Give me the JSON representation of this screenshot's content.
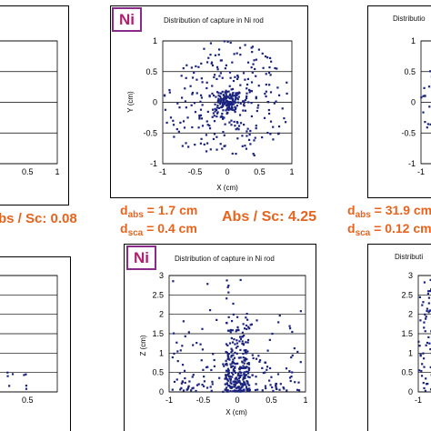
{
  "labels": {
    "ni_tag_top": "Ni",
    "ni_tag_bottom": "Ni",
    "title_ni_top": "Distribution of capture in Ni rod",
    "title_ni_bottom": "Distribution of capture in Ni rod",
    "title_right_top": "Distributio",
    "title_right_bottom": "Distributi",
    "abs_sc_left": "bs / Sc: 0.08",
    "abs_sc_mid": "Abs / Sc: 4.25",
    "mid_d_abs_prefix": "d",
    "mid_d_abs_sub": "abs",
    "mid_d_abs_value": " = 1.7 cm",
    "mid_d_sca_prefix": "d",
    "mid_d_sca_sub": "sca",
    "mid_d_sca_value": " = 0.4 cm",
    "right_d_abs_prefix": "d",
    "right_d_abs_sub": "abs",
    "right_d_abs_value": " = 31.9 cm",
    "right_d_sca_prefix": "d",
    "right_d_sca_sub": "sca",
    "right_d_sca_value": " = 0.12 cm"
  },
  "colors": {
    "points": "#1a237e",
    "accent": "#e8641e",
    "tag_border": "#8a2a8a",
    "tag_text": "#b0206e"
  },
  "chart_data": [
    {
      "id": "ni_xy",
      "type": "scatter",
      "title": "Distribution of capture in Ni rod",
      "xlabel": "X (cm)",
      "ylabel": "Y (cm)",
      "xlim": [
        -1,
        1
      ],
      "ylim": [
        -1,
        1
      ],
      "xticks": [
        "-1",
        "-0.5",
        "0",
        "0.5",
        "1"
      ],
      "yticks": [
        "-1",
        "-0.5",
        "0",
        "0.5",
        "1"
      ],
      "grid": "horizontal",
      "pattern": "dense cluster around origin with scattered points within unit disk",
      "n_points": 420,
      "core_fraction": 0.28,
      "core_radius": 0.09
    },
    {
      "id": "ni_xz",
      "type": "scatter",
      "title": "Distribution of capture in Ni rod",
      "xlabel": "X (cm)",
      "ylabel": "Z (cm)",
      "xlim": [
        -1,
        1
      ],
      "ylim": [
        0,
        3
      ],
      "xticks": [
        "-1",
        "-0.5",
        "0",
        "0.5",
        "1"
      ],
      "yticks": [
        "0",
        "0.5",
        "1",
        "1.5",
        "2",
        "2.5",
        "3"
      ],
      "grid": "horizontal",
      "pattern": "dense column near x=0 decreasing with height",
      "n_points": 420,
      "decay_cm": 0.7
    },
    {
      "id": "left_xy_partial",
      "type": "scatter",
      "xlabel": "",
      "ylabel": "",
      "xlim": [
        -1,
        1
      ],
      "ylim": [
        -1,
        1
      ],
      "xticks": [
        "0.5",
        "1"
      ],
      "grid": "horizontal",
      "pattern": "few sparse points",
      "n_points": 10
    },
    {
      "id": "left_xz_partial",
      "type": "scatter",
      "xlim": [
        -1,
        1
      ],
      "ylim": [
        0,
        3
      ],
      "xticks": [
        "0",
        "0.5"
      ],
      "grid": "horizontal",
      "pattern": "sparse points near bottom",
      "n_points": 16
    },
    {
      "id": "right_xy_partial",
      "type": "scatter",
      "xlim": [
        -1,
        1
      ],
      "ylim": [
        -1,
        1
      ],
      "xticks": [
        "-1",
        "-0.5"
      ],
      "yticks": [
        "-1",
        "-0.5",
        "0",
        "0.5",
        "1"
      ],
      "grid": "horizontal",
      "pattern": "uniform disk",
      "n_points": 420
    },
    {
      "id": "right_xz_partial",
      "type": "scatter",
      "xlim": [
        -1,
        1
      ],
      "ylim": [
        0,
        3
      ],
      "xticks": [
        "-1",
        "-0.5"
      ],
      "yticks": [
        "0",
        "0.5",
        "1",
        "1.5",
        "2",
        "2.5",
        "3"
      ],
      "grid": "horizontal",
      "pattern": "uniform column",
      "n_points": 420
    }
  ]
}
